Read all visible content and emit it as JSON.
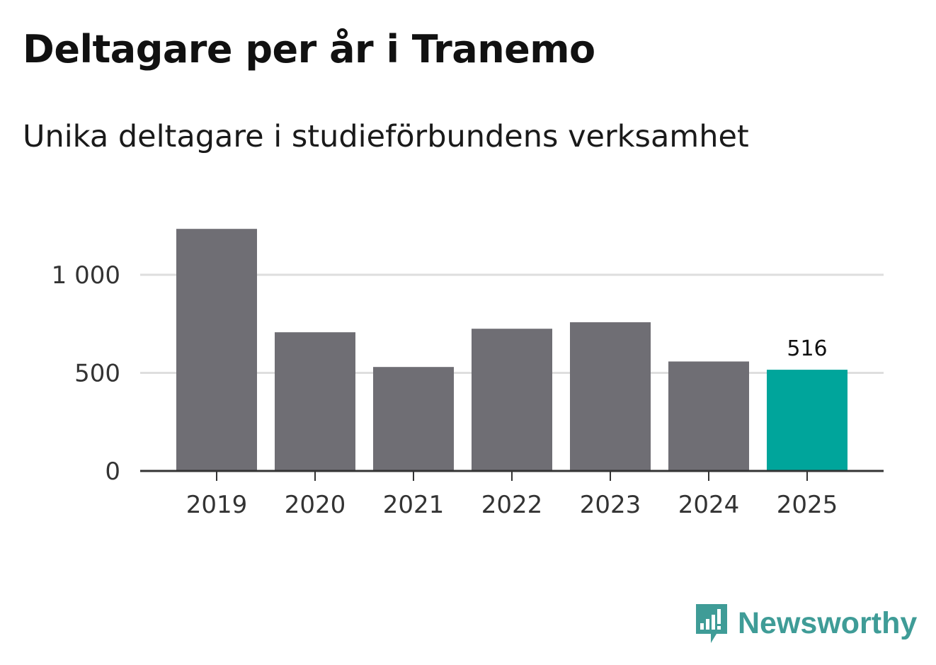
{
  "header": {
    "title": "Deltagare per år i Tranemo",
    "subtitle": "Unika deltagare i studieförbundens verksamhet"
  },
  "brand": {
    "name": "Newsworthy",
    "color": "#3f9c97",
    "icon": "newsworthy-logo-icon"
  },
  "colors": {
    "bar": "#6f6e74",
    "highlight": "#00a59b",
    "grid": "#dedede",
    "axis": "#333333"
  },
  "chart_data": {
    "type": "bar",
    "categories": [
      "2019",
      "2020",
      "2021",
      "2022",
      "2023",
      "2024",
      "2025"
    ],
    "values": [
      1234,
      707,
      530,
      725,
      758,
      558,
      516
    ],
    "highlight_index": 6,
    "data_labels": [
      null,
      null,
      null,
      null,
      null,
      null,
      "516"
    ],
    "yticks": [
      0,
      500,
      1000
    ],
    "ytick_labels": [
      "0",
      "500",
      "1 000"
    ],
    "ylim": [
      0,
      1300
    ],
    "grid": true
  }
}
